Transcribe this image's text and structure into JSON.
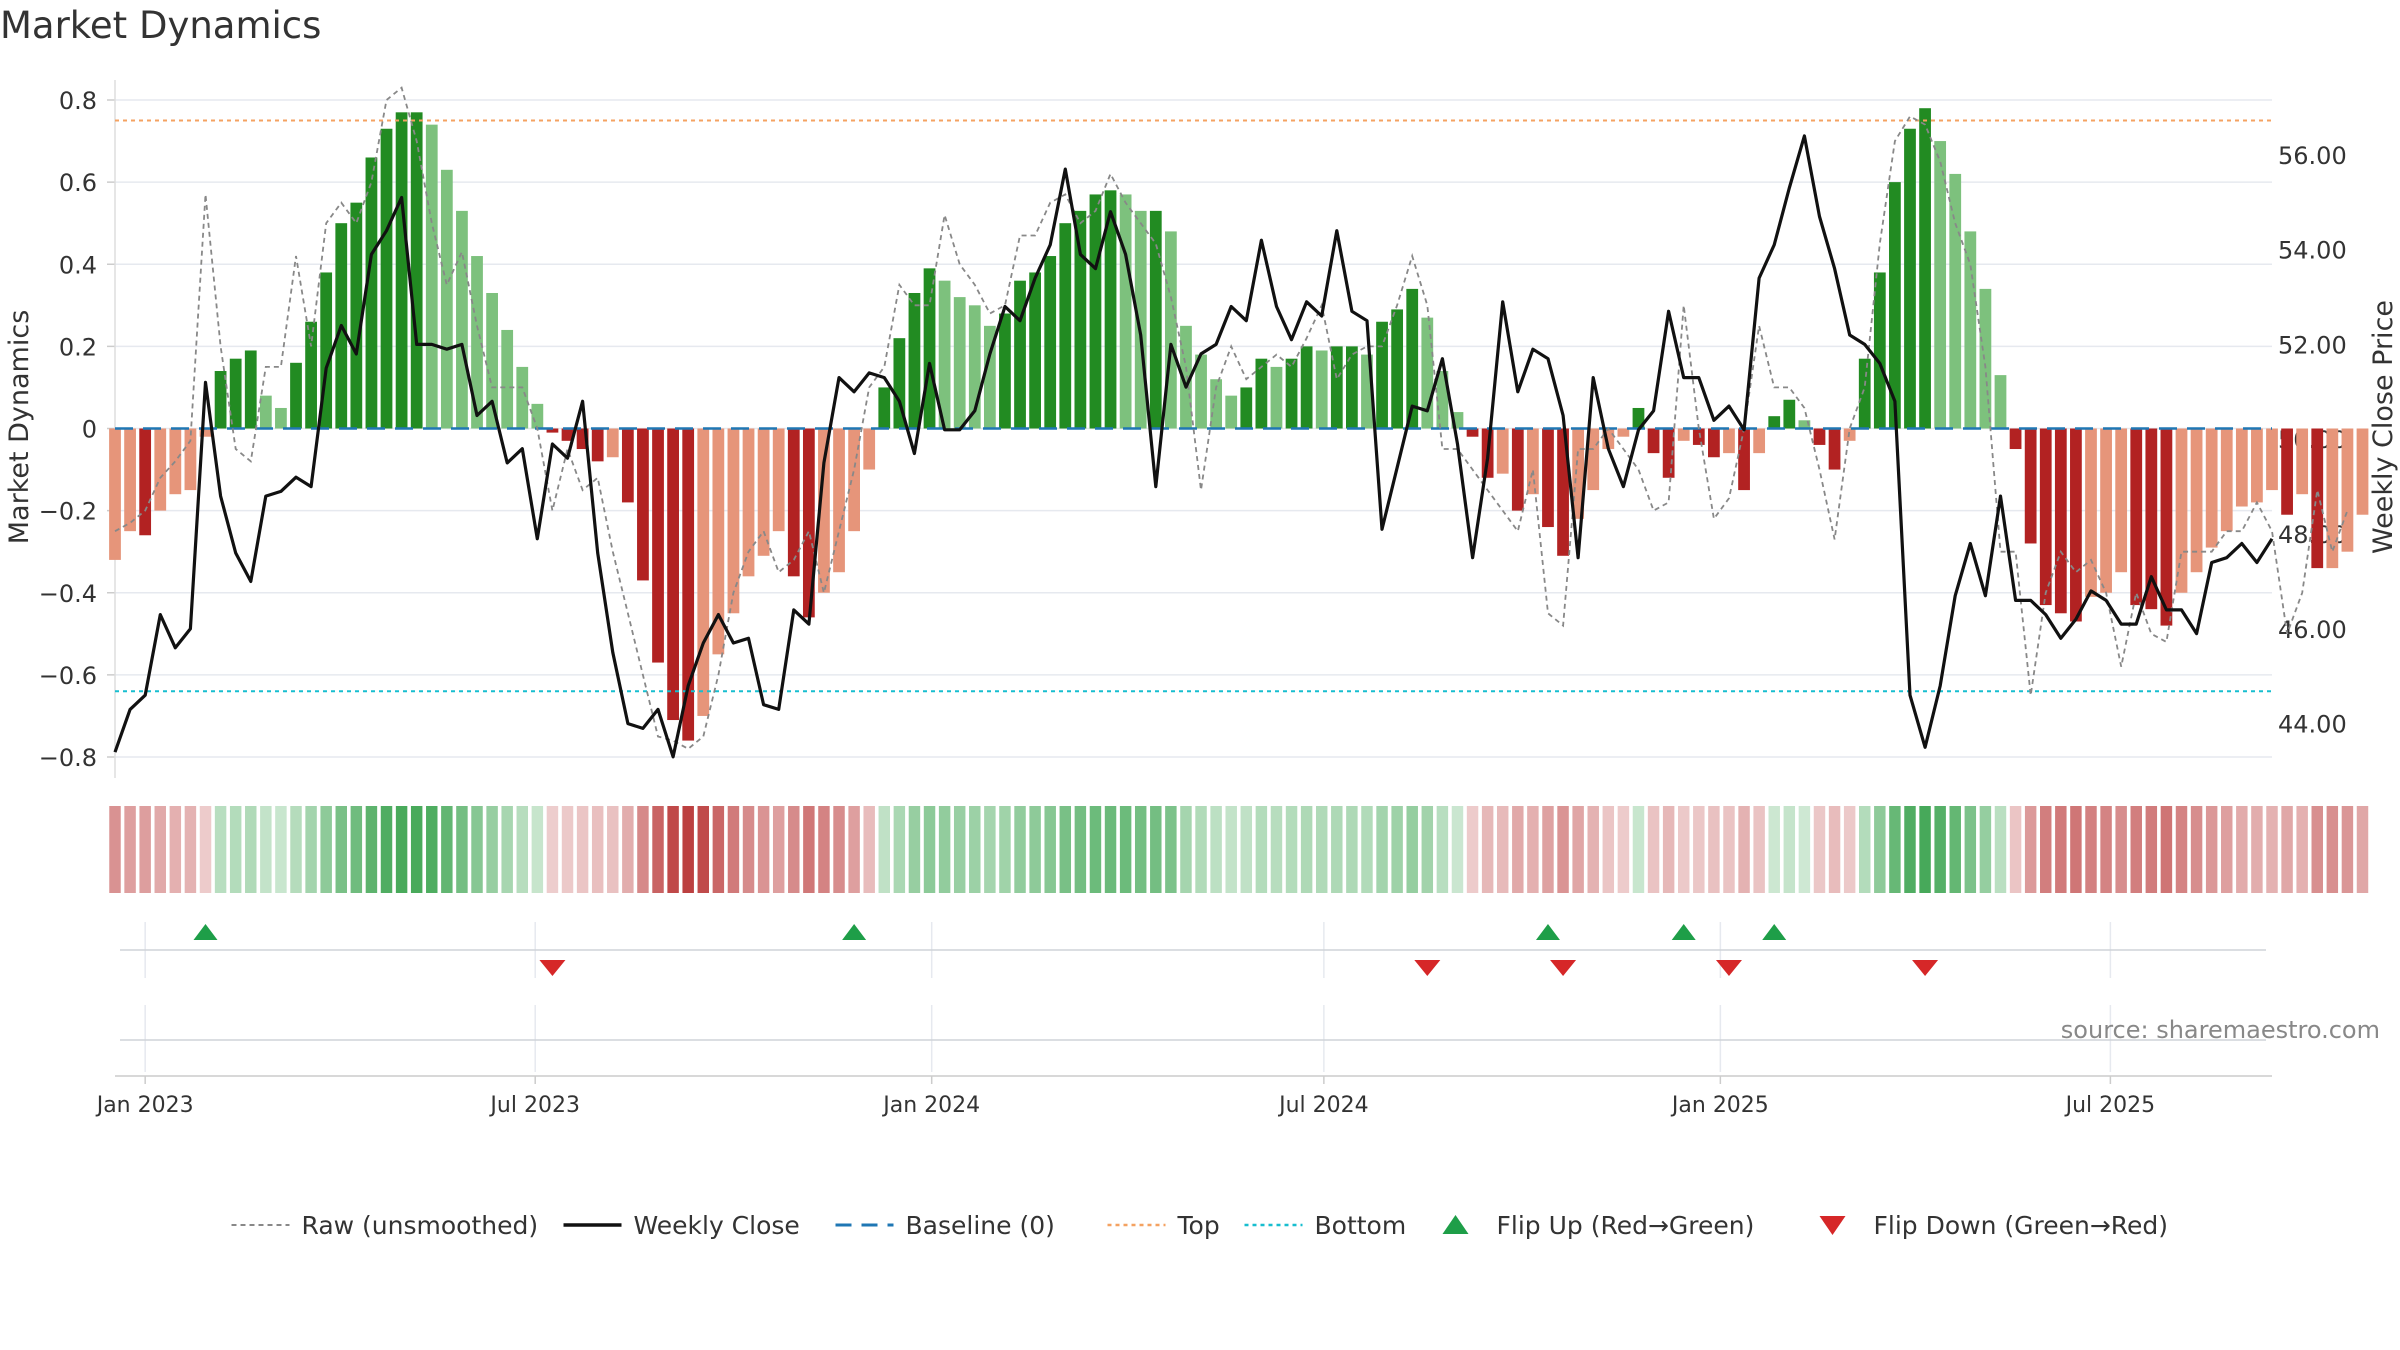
{
  "chart_data": {
    "type": "bar",
    "title": "Market Dynamics",
    "ylabel": "Market Dynamics",
    "y2label": "Weekly Close Price",
    "ylim": [
      -0.8,
      0.8
    ],
    "y2lim": [
      42.8,
      57.4
    ],
    "y_ticks": [
      0.8,
      0.6,
      0.4,
      0.2,
      0,
      -0.2,
      -0.4,
      -0.6,
      -0.8
    ],
    "y_tick_labels": [
      "0.8",
      "0.6",
      "0.4",
      "0.2",
      "0",
      "−0.2",
      "−0.4",
      "−0.6",
      "−0.8"
    ],
    "y2_ticks": [
      56,
      54,
      52,
      50,
      48,
      46,
      44
    ],
    "y2_tick_labels": [
      "56.00",
      "54.00",
      "52.00",
      "50.00",
      "48.00",
      "46.00",
      "44.00"
    ],
    "x_range": [
      "2022-12-18",
      "2025-09-14"
    ],
    "x_ticks": [
      "2023-01-01",
      "2023-07-01",
      "2024-01-01",
      "2024-07-01",
      "2025-01-01",
      "2025-07-01"
    ],
    "x_tick_labels": [
      "Jan 2023",
      "Jul 2023",
      "Jan 2024",
      "Jul 2024",
      "Jan 2025",
      "Jul 2025"
    ],
    "start_week": "2022-12-18",
    "week_step_days": 7,
    "top_level": 0.75,
    "bottom_level": -0.64,
    "baseline": 0,
    "grid": true,
    "legend_position": "bottom-center",
    "colors": {
      "strong_up": "#228b22",
      "weak_up": "#7dc17d",
      "strong_down": "#b22222",
      "weak_down": "#e6957a",
      "raw": "#888888",
      "close": "#111111",
      "baseline": "#1f77b4",
      "top": "#f4a261",
      "bottom": "#17becf",
      "flip_up": "#1e9e48",
      "flip_down": "#d62728"
    },
    "dynamics": [
      -0.32,
      -0.25,
      -0.26,
      -0.2,
      -0.16,
      -0.15,
      -0.02,
      0.14,
      0.17,
      0.19,
      0.08,
      0.05,
      0.16,
      0.26,
      0.38,
      0.5,
      0.55,
      0.66,
      0.73,
      0.77,
      0.77,
      0.74,
      0.63,
      0.53,
      0.42,
      0.33,
      0.24,
      0.15,
      0.06,
      -0.01,
      -0.03,
      -0.05,
      -0.08,
      -0.07,
      -0.18,
      -0.37,
      -0.57,
      -0.71,
      -0.76,
      -0.7,
      -0.55,
      -0.45,
      -0.36,
      -0.31,
      -0.25,
      -0.36,
      -0.46,
      -0.4,
      -0.35,
      -0.25,
      -0.1,
      0.1,
      0.22,
      0.33,
      0.39,
      0.36,
      0.32,
      0.3,
      0.25,
      0.28,
      0.36,
      0.38,
      0.42,
      0.5,
      0.53,
      0.57,
      0.58,
      0.57,
      0.53,
      0.53,
      0.48,
      0.25,
      0.18,
      0.12,
      0.08,
      0.1,
      0.17,
      0.15,
      0.17,
      0.2,
      0.19,
      0.2,
      0.2,
      0.18,
      0.26,
      0.29,
      0.34,
      0.27,
      0.14,
      0.04,
      -0.02,
      -0.12,
      -0.11,
      -0.2,
      -0.16,
      -0.24,
      -0.31,
      -0.22,
      -0.15,
      -0.05,
      -0.02,
      0.05,
      -0.06,
      -0.12,
      -0.03,
      -0.04,
      -0.07,
      -0.06,
      -0.15,
      -0.06,
      0.03,
      0.07,
      0.02,
      -0.04,
      -0.1,
      -0.03,
      0.17,
      0.38,
      0.6,
      0.73,
      0.78,
      0.7,
      0.62,
      0.48,
      0.34,
      0.13,
      -0.05,
      -0.28,
      -0.43,
      -0.45,
      -0.47,
      -0.41,
      -0.4,
      -0.35,
      -0.43,
      -0.44,
      -0.48,
      -0.4,
      -0.35,
      -0.29,
      -0.25,
      -0.19,
      -0.18,
      -0.15,
      -0.21,
      -0.16,
      -0.34,
      -0.34,
      -0.3,
      -0.21
    ],
    "raw": [
      -0.25,
      -0.23,
      -0.2,
      -0.12,
      -0.08,
      -0.03,
      0.57,
      0.2,
      -0.05,
      -0.08,
      0.15,
      0.15,
      0.42,
      0.2,
      0.5,
      0.55,
      0.5,
      0.6,
      0.8,
      0.83,
      0.7,
      0.5,
      0.35,
      0.43,
      0.25,
      0.1,
      0.1,
      0.1,
      0.0,
      -0.2,
      -0.05,
      -0.15,
      -0.12,
      -0.3,
      -0.45,
      -0.6,
      -0.75,
      -0.76,
      -0.78,
      -0.75,
      -0.6,
      -0.4,
      -0.3,
      -0.25,
      -0.35,
      -0.32,
      -0.25,
      -0.4,
      -0.25,
      -0.1,
      0.1,
      0.15,
      0.35,
      0.3,
      0.3,
      0.52,
      0.4,
      0.35,
      0.28,
      0.3,
      0.47,
      0.47,
      0.55,
      0.57,
      0.5,
      0.53,
      0.62,
      0.55,
      0.5,
      0.45,
      0.32,
      0.15,
      -0.15,
      0.1,
      0.2,
      0.12,
      0.15,
      0.18,
      0.15,
      0.22,
      0.3,
      0.12,
      0.18,
      0.2,
      0.2,
      0.3,
      0.42,
      0.3,
      -0.05,
      -0.05,
      -0.1,
      -0.15,
      -0.2,
      -0.25,
      -0.1,
      -0.45,
      -0.48,
      -0.05,
      -0.05,
      0.0,
      -0.05,
      -0.1,
      -0.2,
      -0.18,
      0.3,
      0.0,
      -0.22,
      -0.17,
      0.0,
      0.25,
      0.1,
      0.1,
      0.05,
      -0.1,
      -0.27,
      0.0,
      0.1,
      0.45,
      0.7,
      0.76,
      0.74,
      0.65,
      0.5,
      0.4,
      0.15,
      -0.3,
      -0.3,
      -0.65,
      -0.4,
      -0.3,
      -0.35,
      -0.32,
      -0.4,
      -0.58,
      -0.4,
      -0.5,
      -0.52,
      -0.3,
      -0.3,
      -0.3,
      -0.25,
      -0.25,
      -0.18,
      -0.25,
      -0.5,
      -0.4,
      -0.15,
      -0.3,
      -0.2
    ],
    "close": [
      43.4,
      44.3,
      44.6,
      46.3,
      45.6,
      46.0,
      51.2,
      48.8,
      47.6,
      47.0,
      48.8,
      48.9,
      49.2,
      49.0,
      51.5,
      52.4,
      51.8,
      53.9,
      54.4,
      55.1,
      52.0,
      52.0,
      51.9,
      52.0,
      50.5,
      50.8,
      49.5,
      49.8,
      47.9,
      49.9,
      49.6,
      50.8,
      47.6,
      45.5,
      44.0,
      43.9,
      44.3,
      43.3,
      44.8,
      45.7,
      46.3,
      45.7,
      45.8,
      44.4,
      44.3,
      46.4,
      46.1,
      49.5,
      51.3,
      51.0,
      51.4,
      51.3,
      50.8,
      49.7,
      51.6,
      50.2,
      50.2,
      50.6,
      51.8,
      52.8,
      52.5,
      53.4,
      54.1,
      55.7,
      53.9,
      53.6,
      54.8,
      53.9,
      52.2,
      49.0,
      52.0,
      51.1,
      51.8,
      52.0,
      52.8,
      52.5,
      54.2,
      52.8,
      52.1,
      52.9,
      52.6,
      54.4,
      52.7,
      52.5,
      48.1,
      49.4,
      50.7,
      50.6,
      51.7,
      49.9,
      47.5,
      49.6,
      52.9,
      51.0,
      51.9,
      51.7,
      50.5,
      47.5,
      51.3,
      49.8,
      49.0,
      50.2,
      50.6,
      52.7,
      51.3,
      51.3,
      50.4,
      50.7,
      50.2,
      53.4,
      54.1,
      55.3,
      56.4,
      54.7,
      53.6,
      52.2,
      52.0,
      51.6,
      50.8,
      44.6,
      43.5,
      44.8,
      46.7,
      47.8,
      46.7,
      48.8,
      46.6,
      46.6,
      46.3,
      45.8,
      46.2,
      46.8,
      46.6,
      46.1,
      46.1,
      47.1,
      46.4,
      46.4,
      45.9,
      47.4,
      47.5,
      47.8,
      47.4,
      47.9
    ],
    "flip_up_weeks": [
      6,
      49,
      95,
      104,
      110
    ],
    "flip_down_weeks": [
      29,
      87,
      96,
      107,
      120
    ],
    "annotation": "source: sharemaestro.com",
    "legend": [
      {
        "label": "Raw (unsmoothed)",
        "style": "dashed-gray"
      },
      {
        "label": "Weekly Close",
        "style": "solid-black"
      },
      {
        "label": "Baseline (0)",
        "style": "dashed-blue"
      },
      {
        "label": "Top",
        "style": "dotted-orange"
      },
      {
        "label": "Bottom",
        "style": "dotted-cyan"
      },
      {
        "label": "Flip Up (Red→Green)",
        "style": "triangle-up-green"
      },
      {
        "label": "Flip Down (Green→Red)",
        "style": "triangle-down-red"
      }
    ]
  }
}
